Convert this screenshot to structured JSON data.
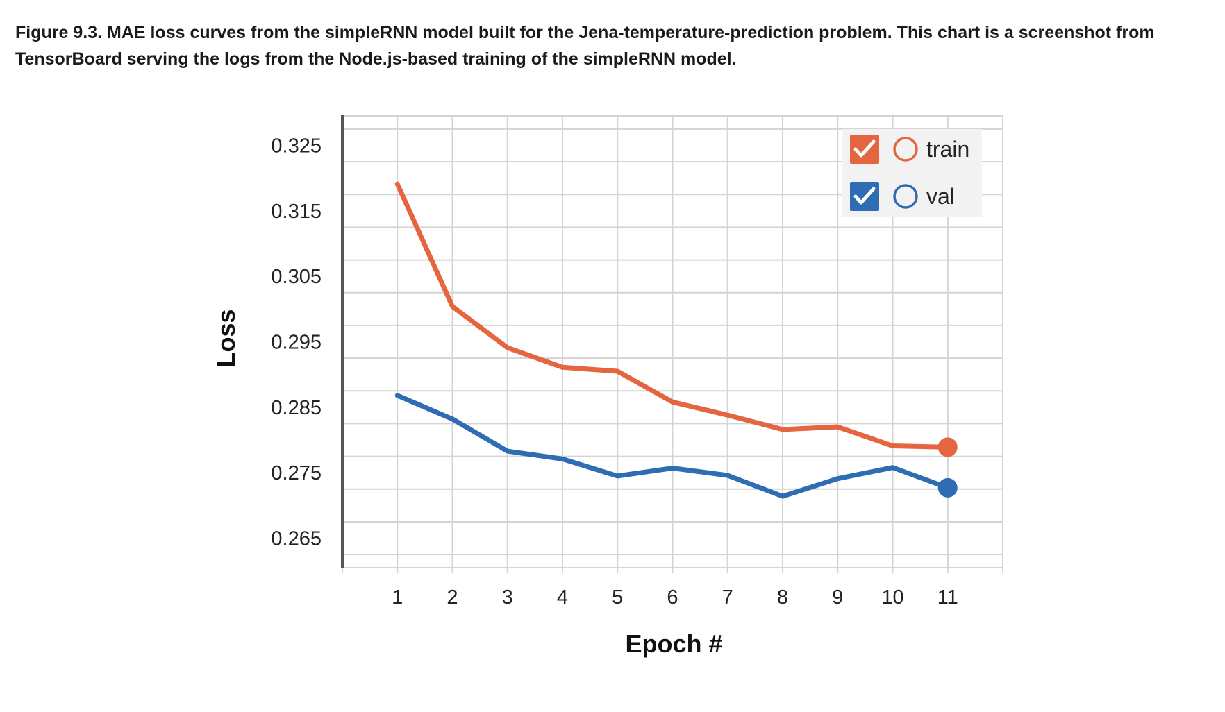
{
  "caption": "Figure 9.3. MAE loss curves from the simpleRNN model built for the Jena-temperature-prediction problem. This chart is a screenshot from TensorBoard serving the logs from the Node.js-based training of the simpleRNN model.",
  "colors": {
    "train": "#e4653f",
    "val": "#2e6db3",
    "grid": "#d4d4d4",
    "axis": "#555555"
  },
  "legend": {
    "items": [
      {
        "series": "train",
        "label": "train",
        "checked": true,
        "icon": "checkmark-icon"
      },
      {
        "series": "val",
        "label": "val",
        "checked": true,
        "icon": "checkmark-icon"
      }
    ]
  },
  "chart_data": {
    "type": "line",
    "title": "",
    "xlabel": "Epoch #",
    "ylabel": "Loss",
    "x": [
      1,
      2,
      3,
      4,
      5,
      6,
      7,
      8,
      9,
      10,
      11
    ],
    "xticks": [
      "1",
      "2",
      "3",
      "4",
      "5",
      "6",
      "7",
      "8",
      "9",
      "10",
      "11"
    ],
    "yticks": [
      "0.325",
      "0.315",
      "0.305",
      "0.295",
      "0.285",
      "0.275",
      "0.265"
    ],
    "ylim": [
      0.2605,
      0.3295
    ],
    "xlim": [
      0,
      12
    ],
    "grid": true,
    "legend_position": "top-right",
    "series": [
      {
        "name": "train",
        "values": [
          0.3191,
          0.3004,
          0.2941,
          0.2911,
          0.2905,
          0.2858,
          0.2838,
          0.2816,
          0.282,
          0.2791,
          0.2789
        ]
      },
      {
        "name": "val",
        "values": [
          0.2868,
          0.2832,
          0.2783,
          0.2771,
          0.2745,
          0.2757,
          0.2746,
          0.2714,
          0.2741,
          0.2758,
          0.2727
        ]
      }
    ]
  }
}
